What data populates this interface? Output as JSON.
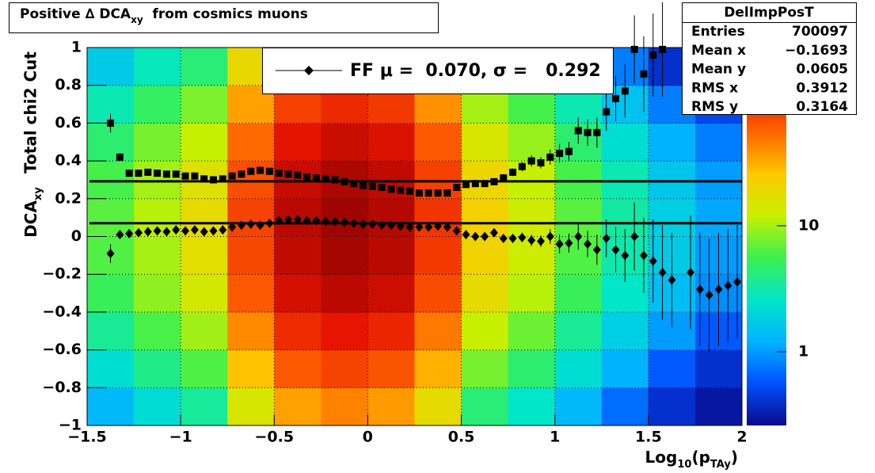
{
  "chart_data": {
    "type": "profile2d",
    "title_parts": [
      "Positive ∆ DCA",
      "xy",
      "  from cosmics muons"
    ],
    "y_label_1": "Total chi2 Cut",
    "y_label_parts": [
      "DCA",
      "xy"
    ],
    "x_label_parts": [
      "Log",
      "10",
      "(p",
      "TAy",
      ")"
    ],
    "xlim": [
      -1.5,
      2
    ],
    "ylim": [
      -1,
      1
    ],
    "xticks": [
      {
        "value": -1.5,
        "label": "−1.5"
      },
      {
        "value": -1,
        "label": "−1"
      },
      {
        "value": -0.5,
        "label": "−0.5"
      },
      0,
      0.5,
      1,
      1.5,
      2
    ],
    "yticks": [
      {
        "value": -1,
        "label": "−1"
      },
      {
        "value": -0.8,
        "label": "−0.8"
      },
      {
        "value": -0.6,
        "label": "−0.6"
      },
      {
        "value": -0.4,
        "label": "−0.4"
      },
      {
        "value": -0.2,
        "label": "−0.2"
      },
      0,
      0.2,
      0.4,
      0.6,
      0.8,
      1
    ],
    "grid": true,
    "zlim": [
      0.26,
      260
    ],
    "zticks": [
      1,
      10
    ],
    "zlog": true,
    "colormap": [
      "#0a0a8c",
      "#0050ff",
      "#00b4ff",
      "#00e6c8",
      "#3cf050",
      "#c8f000",
      "#ffc800",
      "#ff6400",
      "#e61400",
      "#8c0000"
    ],
    "heatmap": {
      "xbins": [
        -1.5,
        -1.25,
        -1,
        -0.75,
        -0.5,
        -0.25,
        0,
        0.25,
        0.5,
        0.75,
        1,
        1.25,
        1.5,
        1.75,
        2
      ],
      "ybins": [
        -1,
        -0.8,
        -0.6,
        -0.4,
        -0.2,
        0,
        0.2,
        0.4,
        0.6,
        0.8,
        1
      ],
      "values": [
        [
          1.3,
          2.2,
          3.5,
          15,
          35,
          44,
          37,
          18,
          4.4,
          2.6,
          1.3,
          0.7,
          0.4,
          0.3
        ],
        [
          2.3,
          3.9,
          6.2,
          27,
          62,
          77,
          65,
          31,
          7.7,
          4.6,
          2.3,
          1.2,
          0.6,
          0.4
        ],
        [
          3.6,
          6,
          9.7,
          42,
          97,
          121,
          103,
          48,
          12,
          7.3,
          3.6,
          1.8,
          1,
          0.6
        ],
        [
          5.3,
          8.8,
          14,
          62,
          141,
          176,
          150,
          70,
          18,
          11,
          5.3,
          2.6,
          1.4,
          0.9
        ],
        [
          6.3,
          10,
          17,
          73,
          167,
          209,
          178,
          84,
          21,
          13,
          6.3,
          3.1,
          1.7,
          1
        ],
        [
          6.6,
          11,
          18,
          77,
          176,
          220,
          187,
          88,
          22,
          13,
          6.6,
          3.3,
          1.8,
          1.1
        ],
        [
          5.9,
          9.9,
          16,
          69,
          158,
          198,
          168,
          79,
          20,
          12,
          5.9,
          3,
          1.6,
          1
        ],
        [
          4.6,
          7.7,
          12,
          54,
          123,
          154,
          131,
          62,
          15,
          9.2,
          4.6,
          2.3,
          1.2,
          0.8
        ],
        [
          3,
          5,
          7.9,
          35,
          79,
          99,
          84,
          40,
          9.9,
          5.9,
          3,
          1.5,
          0.8,
          0.5
        ],
        [
          1.7,
          2.8,
          4.4,
          19,
          44,
          55,
          47,
          22,
          5.5,
          3.3,
          1.7,
          0.8,
          0.4,
          0.3
        ]
      ]
    },
    "x": [
      -1.375,
      -1.325,
      -1.275,
      -1.225,
      -1.175,
      -1.125,
      -1.075,
      -1.025,
      -0.975,
      -0.925,
      -0.875,
      -0.825,
      -0.775,
      -0.725,
      -0.675,
      -0.625,
      -0.575,
      -0.525,
      -0.475,
      -0.425,
      -0.375,
      -0.325,
      -0.275,
      -0.225,
      -0.175,
      -0.125,
      -0.075,
      -0.025,
      0.025,
      0.075,
      0.125,
      0.175,
      0.225,
      0.275,
      0.325,
      0.375,
      0.425,
      0.475,
      0.525,
      0.575,
      0.625,
      0.675,
      0.725,
      0.775,
      0.825,
      0.875,
      0.925,
      0.975,
      1.025,
      1.075,
      1.125,
      1.175,
      1.225,
      1.275,
      1.325,
      1.375,
      1.425,
      1.475,
      1.525,
      1.575,
      1.625,
      1.675,
      1.725,
      1.775,
      1.825,
      1.875,
      1.925,
      1.975
    ],
    "series": [
      {
        "marker": "square",
        "color": "#000000",
        "values": [
          0.6,
          0.42,
          0.335,
          0.335,
          0.34,
          0.335,
          0.33,
          0.33,
          0.32,
          0.32,
          0.305,
          0.3,
          0.305,
          0.32,
          0.33,
          0.345,
          0.35,
          0.345,
          0.335,
          0.33,
          0.325,
          0.315,
          0.31,
          0.305,
          0.3,
          0.29,
          0.28,
          0.27,
          0.265,
          0.26,
          0.25,
          0.245,
          0.24,
          0.23,
          0.23,
          0.23,
          0.23,
          0.26,
          0.275,
          0.28,
          0.28,
          0.29,
          0.31,
          0.34,
          0.37,
          0.4,
          0.39,
          0.42,
          0.44,
          0.45,
          0.56,
          0.55,
          0.55,
          0.66,
          0.73,
          0.77,
          0.99,
          0.86,
          0.96,
          0.99,
          null,
          null,
          null,
          null,
          null,
          null,
          null,
          null
        ],
        "errors": [
          0.05,
          0.02,
          0.01,
          0.01,
          0.01,
          0.01,
          0.01,
          0.01,
          0.01,
          0.01,
          0.01,
          0.01,
          0.01,
          0.01,
          0.01,
          0.01,
          0.01,
          0.01,
          0.01,
          0.01,
          0.01,
          0.01,
          0.01,
          0.01,
          0.01,
          0.01,
          0.01,
          0.01,
          0.01,
          0.01,
          0.01,
          0.01,
          0.01,
          0.01,
          0.01,
          0.01,
          0.01,
          0.01,
          0.01,
          0.01,
          0.01,
          0.015,
          0.02,
          0.02,
          0.025,
          0.03,
          0.03,
          0.04,
          0.05,
          0.05,
          0.07,
          0.07,
          0.08,
          0.1,
          0.12,
          0.14,
          0.18,
          0.2,
          0.22,
          0.25,
          null,
          null,
          null,
          null,
          null,
          null,
          null,
          null
        ]
      },
      {
        "marker": "diamond",
        "color": "#000000",
        "values": [
          -0.09,
          0.01,
          0.015,
          0.02,
          0.025,
          0.03,
          0.025,
          0.035,
          0.03,
          0.035,
          0.025,
          0.03,
          0.035,
          0.05,
          0.06,
          0.065,
          0.06,
          0.07,
          0.085,
          0.09,
          0.09,
          0.085,
          0.085,
          0.08,
          0.08,
          0.075,
          0.07,
          0.065,
          0.065,
          0.06,
          0.06,
          0.055,
          0.05,
          0.05,
          0.05,
          0.055,
          0.05,
          0.03,
          0.01,
          0.0,
          0.0,
          0.02,
          -0.01,
          -0.01,
          -0.005,
          -0.02,
          -0.025,
          0.0,
          -0.04,
          -0.035,
          0.0,
          -0.04,
          -0.07,
          -0.01,
          -0.07,
          -0.1,
          0.0,
          -0.1,
          -0.13,
          -0.19,
          -0.23,
          null,
          -0.19,
          -0.28,
          -0.31,
          -0.28,
          -0.26,
          -0.24
        ],
        "errors": [
          0.05,
          0.02,
          0.01,
          0.01,
          0.01,
          0.01,
          0.01,
          0.01,
          0.01,
          0.01,
          0.01,
          0.01,
          0.01,
          0.01,
          0.01,
          0.01,
          0.01,
          0.01,
          0.01,
          0.01,
          0.01,
          0.01,
          0.01,
          0.01,
          0.01,
          0.01,
          0.01,
          0.01,
          0.01,
          0.01,
          0.01,
          0.01,
          0.01,
          0.01,
          0.01,
          0.01,
          0.01,
          0.01,
          0.01,
          0.01,
          0.01,
          0.015,
          0.02,
          0.02,
          0.025,
          0.03,
          0.03,
          0.04,
          0.05,
          0.05,
          0.07,
          0.07,
          0.08,
          0.1,
          0.12,
          0.14,
          0.18,
          0.2,
          0.22,
          0.25,
          0.25,
          null,
          0.3,
          0.3,
          0.3,
          0.3,
          0.3,
          0.3
        ]
      }
    ],
    "fit_mean": 0.07,
    "fit_sigma": 0.292,
    "legend_label": "FF μ =  0.070, σ =   0.292",
    "stats": {
      "title": "DelImpPosT",
      "rows": [
        [
          "Entries",
          "700097"
        ],
        [
          "Mean x",
          "−0.1693"
        ],
        [
          "Mean y",
          "0.0605"
        ],
        [
          "RMS x",
          "0.3912"
        ],
        [
          "RMS y",
          "0.3164"
        ]
      ]
    }
  }
}
